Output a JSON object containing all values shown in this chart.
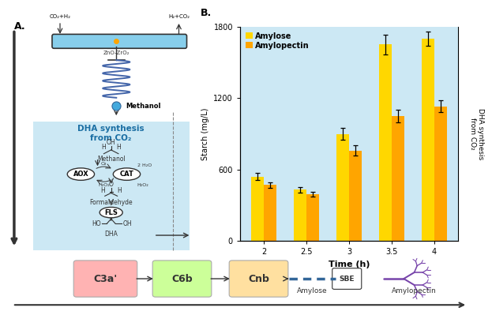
{
  "bar_times": [
    2,
    2.5,
    3,
    3.5,
    4
  ],
  "amylose_values": [
    540,
    430,
    900,
    1650,
    1700
  ],
  "amylopectin_values": [
    470,
    390,
    760,
    1050,
    1130
  ],
  "amylose_errors": [
    30,
    25,
    50,
    80,
    60
  ],
  "amylopectin_errors": [
    25,
    20,
    45,
    55,
    50
  ],
  "amylose_color": "#FFD700",
  "amylopectin_color": "#FFA500",
  "bar_width": 0.15,
  "ylim": [
    0,
    1800
  ],
  "yticks": [
    0,
    600,
    1200,
    1800
  ],
  "xlabel": "Time (h)",
  "ylabel": "Starch (mg/L)",
  "ylabel2": "DHA synthesis\nfrom CO₂",
  "title_b": "B.",
  "title_a": "A.",
  "bg_color": "#cce8f4",
  "box_bg": "#cce8f4",
  "legend_amylose": "Amylose",
  "legend_amylopectin": "Amylopectin",
  "c3a_color": "#ffb3b3",
  "c6b_color": "#ccff99",
  "cnb_color": "#ffe0a0",
  "c3a_label": "C3a'",
  "c6b_label": "C6b",
  "cnb_label": "Cnb",
  "arrow_color": "#333333",
  "amylose_label": "Amylose",
  "amylopectin_label": "Amylopectin",
  "sbe_label": "SBE",
  "dha_title": "DHA synthesis\nfrom CO₂",
  "methanol_label": "Methanol",
  "zno_label": "ZnO-ZrO₂",
  "co2_h2_label": "CO₂+H₂",
  "h2_co2_label": "H₂+CO₂",
  "formaldehyde_label": "Formaldehyde",
  "dha_mol_label": "DHA",
  "aox_label": "AOX",
  "cat_label": "CAT",
  "fls_label": "FLS",
  "tube_color": "#87ceeb",
  "coil_color": "#4466aa",
  "drop_color": "#44aadd",
  "aox_cat_bg": "white",
  "branch_color": "#7744aa"
}
